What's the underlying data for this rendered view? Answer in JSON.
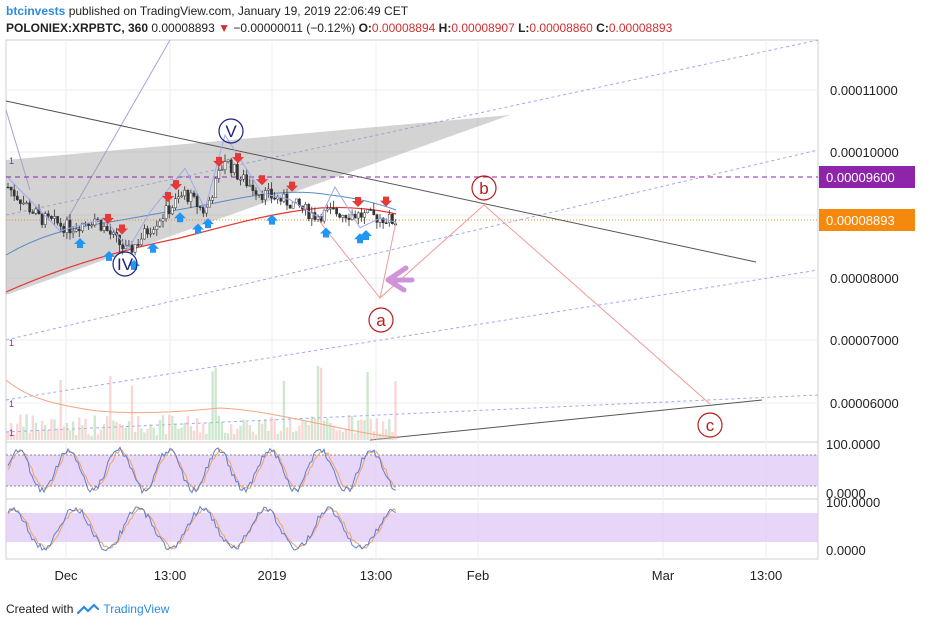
{
  "header": {
    "author": "btcinvests",
    "published_text": "published on TradingView.com, January 19, 2019 22:06:49 CET",
    "symbol": "POLONIEX:XRPBTC, 360",
    "last": "0.00008893",
    "change": "−0.00000011 (−0.12%)",
    "o_label": "O:",
    "o_value": "0.00008894",
    "h_label": "H:",
    "h_value": "0.00008907",
    "l_label": "L:",
    "l_value": "0.00008860",
    "c_label": "C:",
    "c_value": "0.00008893"
  },
  "footer": {
    "created_with": "Created with",
    "brand": "TradingView"
  },
  "colors": {
    "up": "#26a69a",
    "down": "#ef5350",
    "ma_red": "#e53935",
    "ma_blue": "#5b8ac6",
    "target_box": "#8e24aa",
    "price_box": "#f5890d",
    "wave_label": "#b71c1c",
    "impulse_label": "#1a237e",
    "osc_band": "#e0c8f5"
  },
  "chart_data": [
    {
      "type": "candlestick",
      "title": "POLONIEX:XRPBTC, 360",
      "price_axis_ticks": [
        "0.00011000",
        "0.00010000",
        "0.00008000",
        "0.00007000",
        "0.00006000"
      ],
      "time_axis_ticks": [
        "Dec",
        "13:00",
        "2019",
        "13:00",
        "Feb",
        "Mar",
        "13:00"
      ],
      "price_ylim": [
        5.55e-05,
        1.18e-05
      ],
      "price_labels": [
        {
          "label": "target",
          "value": 9.6e-05,
          "text": "0.00009600"
        },
        {
          "label": "last",
          "value": 8.893e-05,
          "text": "0.00008893"
        }
      ],
      "elliott_labels": [
        {
          "label": "IV",
          "value": 8.35e-05
        },
        {
          "label": "V",
          "value": 0.0001028
        },
        {
          "label": "a",
          "value": 7.6e-05
        },
        {
          "label": "b",
          "value": 9.15e-05
        },
        {
          "label": "c",
          "value": 5.95e-05
        }
      ],
      "volume_markers": [
        "1",
        "1",
        "1",
        "1"
      ]
    },
    {
      "type": "line",
      "title": "",
      "oscillator": "indicator 1",
      "ylim": [
        0,
        100
      ],
      "tick_labels": [
        "100.0000",
        "0.0000"
      ],
      "band": [
        20,
        80
      ]
    },
    {
      "type": "line",
      "title": "",
      "oscillator": "indicator 2",
      "ylim": [
        0,
        100
      ],
      "tick_labels": [
        "100.0000",
        "0.0000"
      ],
      "band": [
        20,
        80
      ]
    }
  ]
}
